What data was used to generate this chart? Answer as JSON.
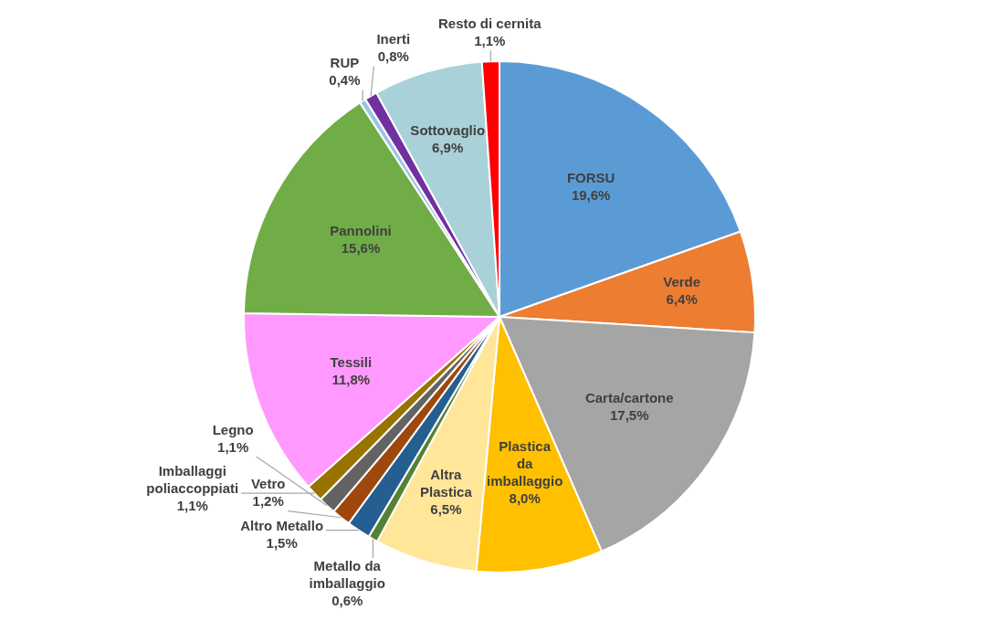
{
  "chart_data": {
    "type": "pie",
    "categories": [
      "FORSU",
      "Verde",
      "Carta/cartone",
      "Plastica da imballaggio",
      "Altra Plastica",
      "Metallo da imballaggio",
      "Altro Metallo",
      "Vetro",
      "Legno",
      "Imballaggi poliaccoppiati",
      "Tessili",
      "Pannolini",
      "RUP",
      "Inerti",
      "Sottovaglio",
      "Resto di cernita"
    ],
    "values": [
      19.6,
      6.4,
      17.5,
      8.0,
      6.5,
      0.6,
      1.5,
      1.2,
      1.1,
      1.1,
      11.8,
      15.6,
      0.4,
      0.8,
      6.9,
      1.1
    ],
    "colors": [
      "#5b9bd5",
      "#ed7d31",
      "#a5a5a5",
      "#ffc000",
      "#ffe699",
      "#548235",
      "#255e91",
      "#9e480e",
      "#636363",
      "#997300",
      "#ff99ff",
      "#70ad47",
      "#9dc3e6",
      "#7030a0",
      "#a9d1d8",
      "#ff0000"
    ],
    "value_labels": [
      "19,6%",
      "6,4%",
      "17,5%",
      "8,0%",
      "6,5%",
      "0,6%",
      "1,5%",
      "1,2%",
      "1,1%",
      "1,1%",
      "11,8%",
      "15,6%",
      "0,4%",
      "0,8%",
      "6,9%",
      "1,1%"
    ],
    "legend": false
  }
}
